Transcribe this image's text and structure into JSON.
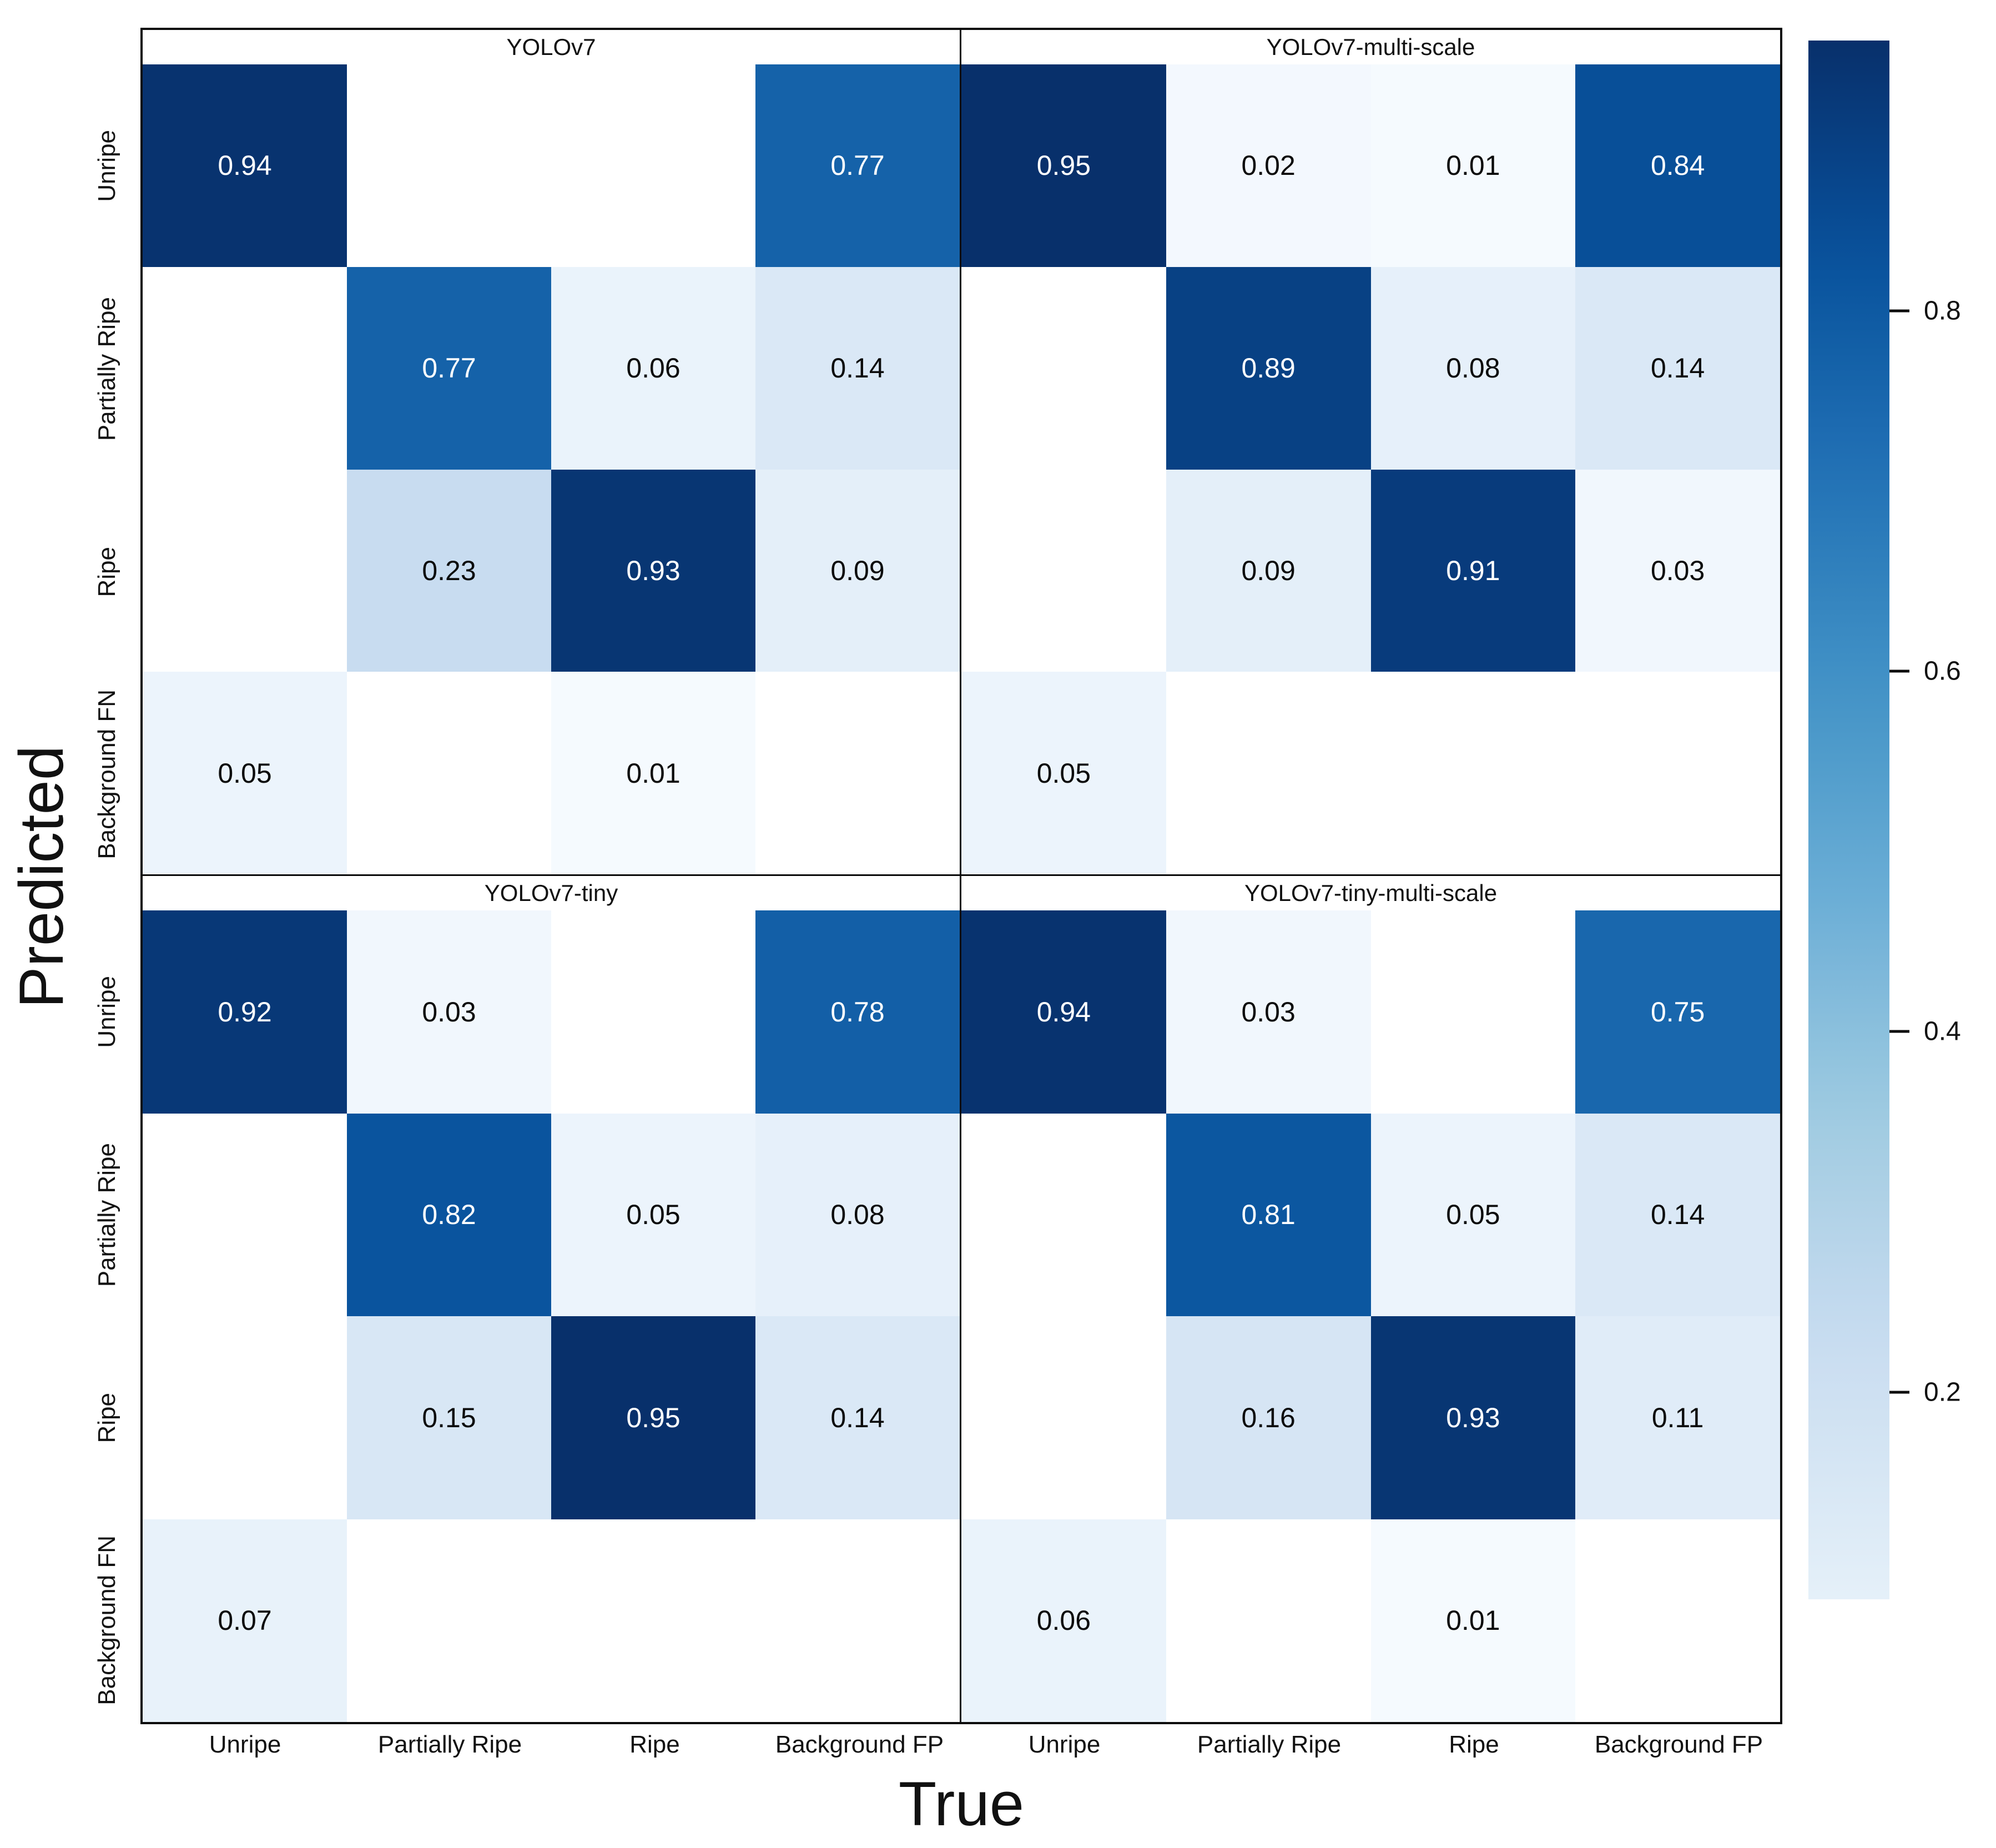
{
  "figure": {
    "ylabel": "Predicted",
    "xlabel": "True",
    "row_labels": [
      "Unripe",
      "Partially Ripe",
      "Ripe",
      "Background FN"
    ],
    "col_labels": [
      "Unripe",
      "Partially Ripe",
      "Ripe",
      "Background FP"
    ]
  },
  "colorbar": {
    "ticks": [
      0.8,
      0.6,
      0.4,
      0.2
    ],
    "vmax": 0.95,
    "vmin": 0.085,
    "colormap": "Blues",
    "top_color": "#08306b",
    "bottom_color": "#e5f0f9"
  },
  "chart_data": [
    {
      "type": "heatmap",
      "title": "YOLOv7",
      "x": [
        "Unripe",
        "Partially Ripe",
        "Ripe",
        "Background FP"
      ],
      "y": [
        "Unripe",
        "Partially Ripe",
        "Ripe",
        "Background FN"
      ],
      "values": [
        [
          0.94,
          null,
          null,
          0.77
        ],
        [
          null,
          0.77,
          0.06,
          0.14
        ],
        [
          null,
          0.23,
          0.93,
          0.09
        ],
        [
          0.05,
          null,
          0.01,
          null
        ]
      ]
    },
    {
      "type": "heatmap",
      "title": "YOLOv7-multi-scale",
      "x": [
        "Unripe",
        "Partially Ripe",
        "Ripe",
        "Background FP"
      ],
      "y": [
        "Unripe",
        "Partially Ripe",
        "Ripe",
        "Background FN"
      ],
      "values": [
        [
          0.95,
          0.02,
          0.01,
          0.84
        ],
        [
          null,
          0.89,
          0.08,
          0.14
        ],
        [
          null,
          0.09,
          0.91,
          0.03
        ],
        [
          0.05,
          null,
          null,
          null
        ]
      ]
    },
    {
      "type": "heatmap",
      "title": "YOLOv7-tiny",
      "x": [
        "Unripe",
        "Partially Ripe",
        "Ripe",
        "Background FP"
      ],
      "y": [
        "Unripe",
        "Partially Ripe",
        "Ripe",
        "Background FN"
      ],
      "values": [
        [
          0.92,
          0.03,
          null,
          0.78
        ],
        [
          null,
          0.82,
          0.05,
          0.08
        ],
        [
          null,
          0.15,
          0.95,
          0.14
        ],
        [
          0.07,
          null,
          null,
          null
        ]
      ]
    },
    {
      "type": "heatmap",
      "title": "YOLOv7-tiny-multi-scale",
      "x": [
        "Unripe",
        "Partially Ripe",
        "Ripe",
        "Background FP"
      ],
      "y": [
        "Unripe",
        "Partially Ripe",
        "Ripe",
        "Background FN"
      ],
      "values": [
        [
          0.94,
          0.03,
          null,
          0.75
        ],
        [
          null,
          0.81,
          0.05,
          0.14
        ],
        [
          null,
          0.16,
          0.93,
          0.11
        ],
        [
          0.06,
          null,
          0.01,
          null
        ]
      ]
    }
  ]
}
